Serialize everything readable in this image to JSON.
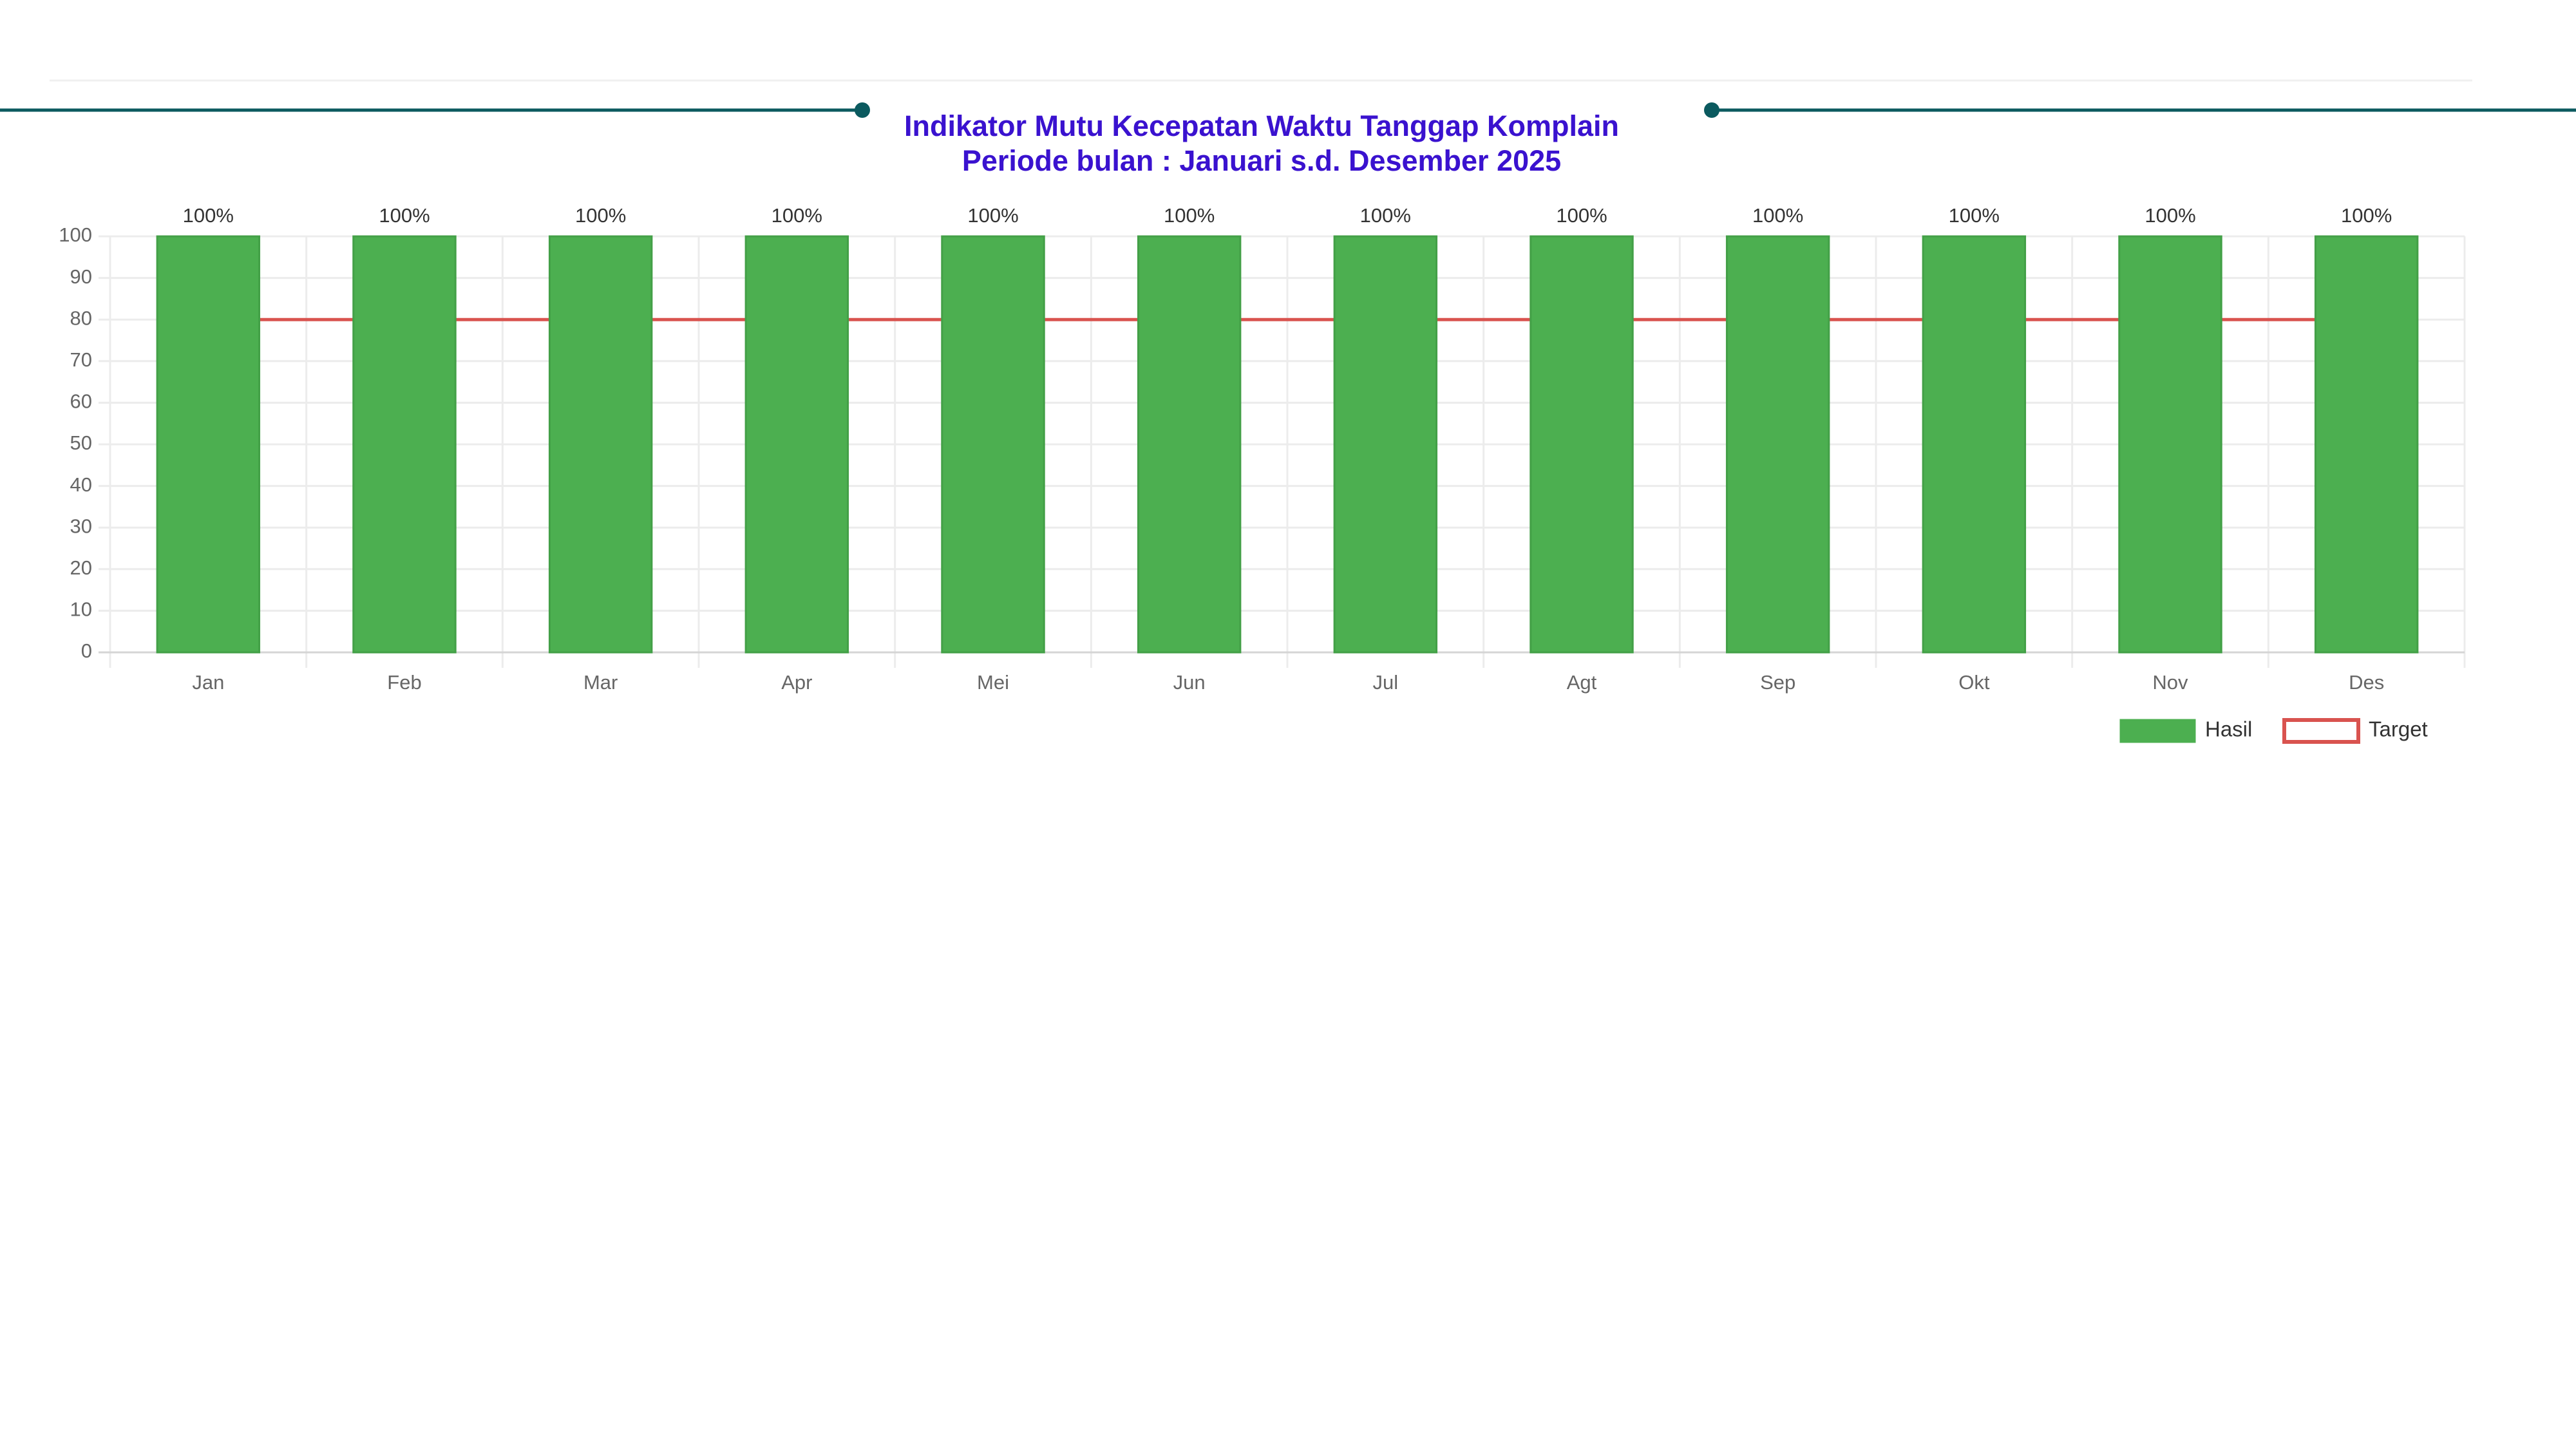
{
  "chart_data": {
    "type": "bar",
    "title": "Indikator Mutu Kecepatan Waktu Tanggap Komplain",
    "subtitle": "Periode bulan : Januari s.d. Desember 2025",
    "categories": [
      "Jan",
      "Feb",
      "Mar",
      "Apr",
      "Mei",
      "Jun",
      "Jul",
      "Agt",
      "Sep",
      "Okt",
      "Nov",
      "Des"
    ],
    "series": [
      {
        "name": "Hasil",
        "type": "bar",
        "color": "#4caf50",
        "values": [
          100,
          100,
          100,
          100,
          100,
          100,
          100,
          100,
          100,
          100,
          100,
          100
        ],
        "value_labels": [
          "100%",
          "100%",
          "100%",
          "100%",
          "100%",
          "100%",
          "100%",
          "100%",
          "100%",
          "100%",
          "100%",
          "100%"
        ]
      },
      {
        "name": "Target",
        "type": "line",
        "color": "#d9534f",
        "values": [
          80,
          80,
          80,
          80,
          80,
          80,
          80,
          80,
          80,
          80,
          80,
          80
        ]
      }
    ],
    "ylim": [
      0,
      100
    ],
    "yticks": [
      0,
      10,
      20,
      30,
      40,
      50,
      60,
      70,
      80,
      90,
      100
    ],
    "grid": true
  }
}
